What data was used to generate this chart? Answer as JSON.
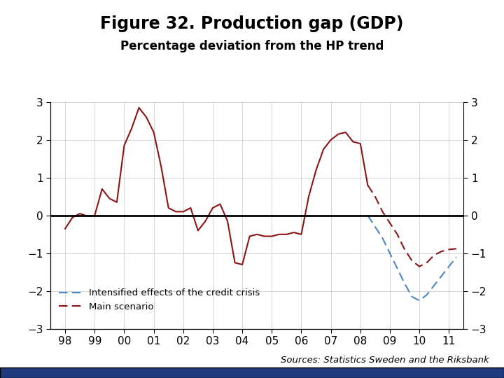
{
  "title": "Figure 32. Production gap (GDP)",
  "subtitle": "Percentage deviation from the HP trend",
  "sources": "Sources: Statistics Sweden and the Riksbank",
  "solid_color": "#8B1515",
  "dashed_blue_color": "#4A86C8",
  "dashed_red_color": "#8B1515",
  "background_color": "#FFFFFF",
  "legend_blue_label": "Intensified effects of the credit crisis",
  "legend_red_label": "Main scenario",
  "solid_x": [
    0.0,
    0.25,
    0.5,
    0.75,
    1.0,
    1.25,
    1.5,
    1.75,
    2.0,
    2.25,
    2.5,
    2.75,
    3.0,
    3.25,
    3.5,
    3.75,
    4.0,
    4.25,
    4.5,
    4.75,
    5.0,
    5.25,
    5.5,
    5.75,
    6.0,
    6.25,
    6.5,
    6.75,
    7.0,
    7.25,
    7.5,
    7.75,
    8.0,
    8.25,
    8.5,
    8.75,
    9.0,
    9.25,
    9.5,
    9.75,
    10.0,
    10.25
  ],
  "solid_y": [
    -0.35,
    -0.05,
    0.05,
    -0.02,
    0.0,
    0.7,
    0.45,
    0.35,
    1.85,
    2.3,
    2.85,
    2.6,
    2.2,
    1.3,
    0.2,
    0.1,
    0.1,
    0.2,
    -0.4,
    -0.15,
    0.2,
    0.3,
    -0.15,
    -1.25,
    -1.3,
    -0.55,
    -0.5,
    -0.55,
    -0.55,
    -0.5,
    -0.5,
    -0.45,
    -0.5,
    0.5,
    1.2,
    1.75,
    2.0,
    2.15,
    2.2,
    1.95,
    1.9,
    0.8
  ],
  "dashed_red_x": [
    10.25,
    10.5,
    10.75,
    11.0,
    11.25,
    11.5,
    11.75,
    12.0,
    12.25,
    12.5,
    12.75,
    13.0,
    13.25
  ],
  "dashed_red_y": [
    0.8,
    0.5,
    0.1,
    -0.2,
    -0.5,
    -0.9,
    -1.2,
    -1.35,
    -1.25,
    -1.05,
    -0.95,
    -0.9,
    -0.88
  ],
  "dashed_blue_x": [
    10.25,
    10.5,
    10.75,
    11.0,
    11.25,
    11.5,
    11.75,
    12.0,
    12.25,
    12.5,
    12.75,
    13.0,
    13.25
  ],
  "dashed_blue_y": [
    0.0,
    -0.3,
    -0.6,
    -1.0,
    -1.4,
    -1.8,
    -2.15,
    -2.25,
    -2.1,
    -1.85,
    -1.6,
    -1.35,
    -1.1
  ],
  "xtick_pos": [
    0,
    1,
    2,
    3,
    4,
    5,
    6,
    7,
    8,
    9,
    10,
    11,
    12,
    13
  ],
  "xtick_labels": [
    "98",
    "99",
    "00",
    "01",
    "02",
    "03",
    "04",
    "05",
    "06",
    "07",
    "08",
    "09",
    "10",
    "11"
  ],
  "yticks": [
    -3,
    -2,
    -1,
    0,
    1,
    2,
    3
  ],
  "bar_color": "#1F3A7D"
}
